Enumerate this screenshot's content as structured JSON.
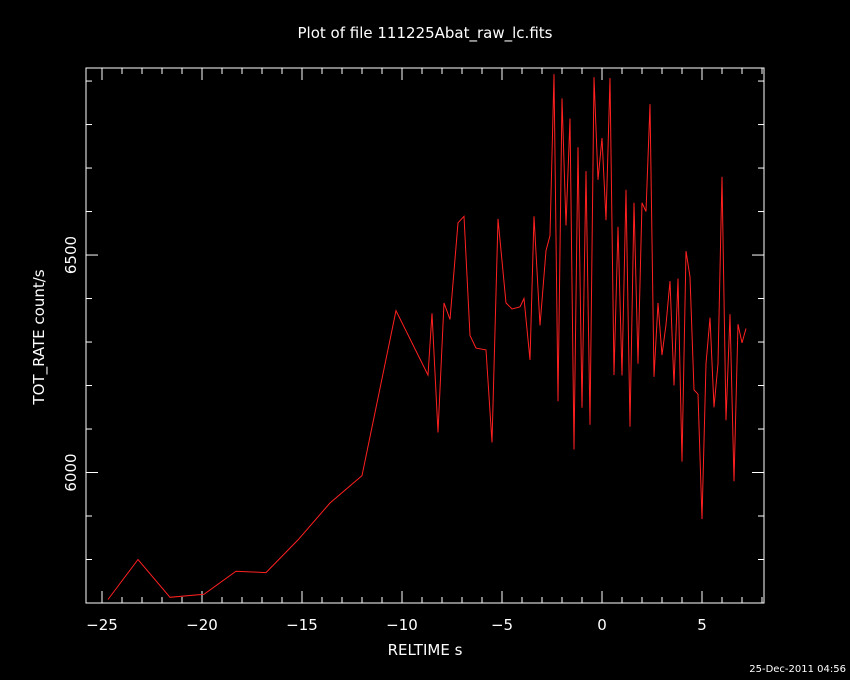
{
  "chart_data": {
    "type": "line",
    "title": "Plot of file 111225Abat_raw_lc.fits",
    "xlabel": "RELTIME  s",
    "ylabel": "TOT_RATE  count/s",
    "timestamp": "25-Dec-2011 04:56",
    "xlim": [
      -25.8,
      8.1
    ],
    "ylim": [
      5700,
      6930
    ],
    "xticks": [
      -25,
      -20,
      -15,
      -10,
      -5,
      0,
      5
    ],
    "xtick_labels": [
      "−25",
      "−20",
      "−15",
      "−10",
      "−5",
      "0",
      "5"
    ],
    "yticks": [
      6000,
      6500
    ],
    "ytick_labels": [
      "6000",
      "6500"
    ],
    "grid": false,
    "colors": {
      "background": "#000000",
      "frame": "#ffffff",
      "text": "#ffffff",
      "series": "#ff2020"
    },
    "series": [
      {
        "x": [
          -24.7,
          -23.2,
          -21.6,
          -19.9,
          -18.3,
          -16.8,
          -15.2,
          -13.6,
          -12.0,
          -10.3,
          -8.7,
          -8.5,
          -8.2,
          -7.9,
          -7.6,
          -7.2,
          -6.9,
          -6.6,
          -6.3,
          -5.8,
          -5.5,
          -5.2,
          -4.8,
          -4.5,
          -4.1,
          -3.9,
          -3.6,
          -3.4,
          -3.1,
          -2.8,
          -2.6,
          -2.4,
          -2.2,
          -2.0,
          -1.8,
          -1.6,
          -1.4,
          -1.2,
          -1.0,
          -0.8,
          -0.6,
          -0.4,
          -0.2,
          0.0,
          0.2,
          0.4,
          0.6,
          0.8,
          1.0,
          1.2,
          1.4,
          1.6,
          1.8,
          2.0,
          2.2,
          2.4,
          2.6,
          2.8,
          3.0,
          3.2,
          3.4,
          3.6,
          3.8,
          4.0,
          4.2,
          4.4,
          4.6,
          4.8,
          5.0,
          5.2,
          5.4,
          5.6,
          5.8,
          6.0,
          6.2,
          6.4,
          6.6,
          6.8,
          7.0,
          7.2
        ],
        "y": [
          5708,
          5800,
          5713,
          5720,
          5773,
          5770,
          5845,
          5930,
          5993,
          6372,
          6224,
          6366,
          6092,
          6390,
          6352,
          6574,
          6589,
          6315,
          6286,
          6282,
          6069,
          6583,
          6390,
          6376,
          6381,
          6400,
          6259,
          6589,
          6338,
          6510,
          6545,
          6916,
          6164,
          6860,
          6568,
          6814,
          6053,
          6748,
          6149,
          6693,
          6110,
          6909,
          6673,
          6769,
          6580,
          6907,
          6224,
          6565,
          6223,
          6650,
          6105,
          6620,
          6250,
          6620,
          6600,
          6847,
          6220,
          6390,
          6270,
          6340,
          6440,
          6200,
          6446,
          6025,
          6509,
          6450,
          6190,
          6180,
          5893,
          6250,
          6356,
          6150,
          6250,
          6680,
          6120,
          6364,
          5980,
          6341,
          6298,
          6331
        ]
      }
    ]
  }
}
